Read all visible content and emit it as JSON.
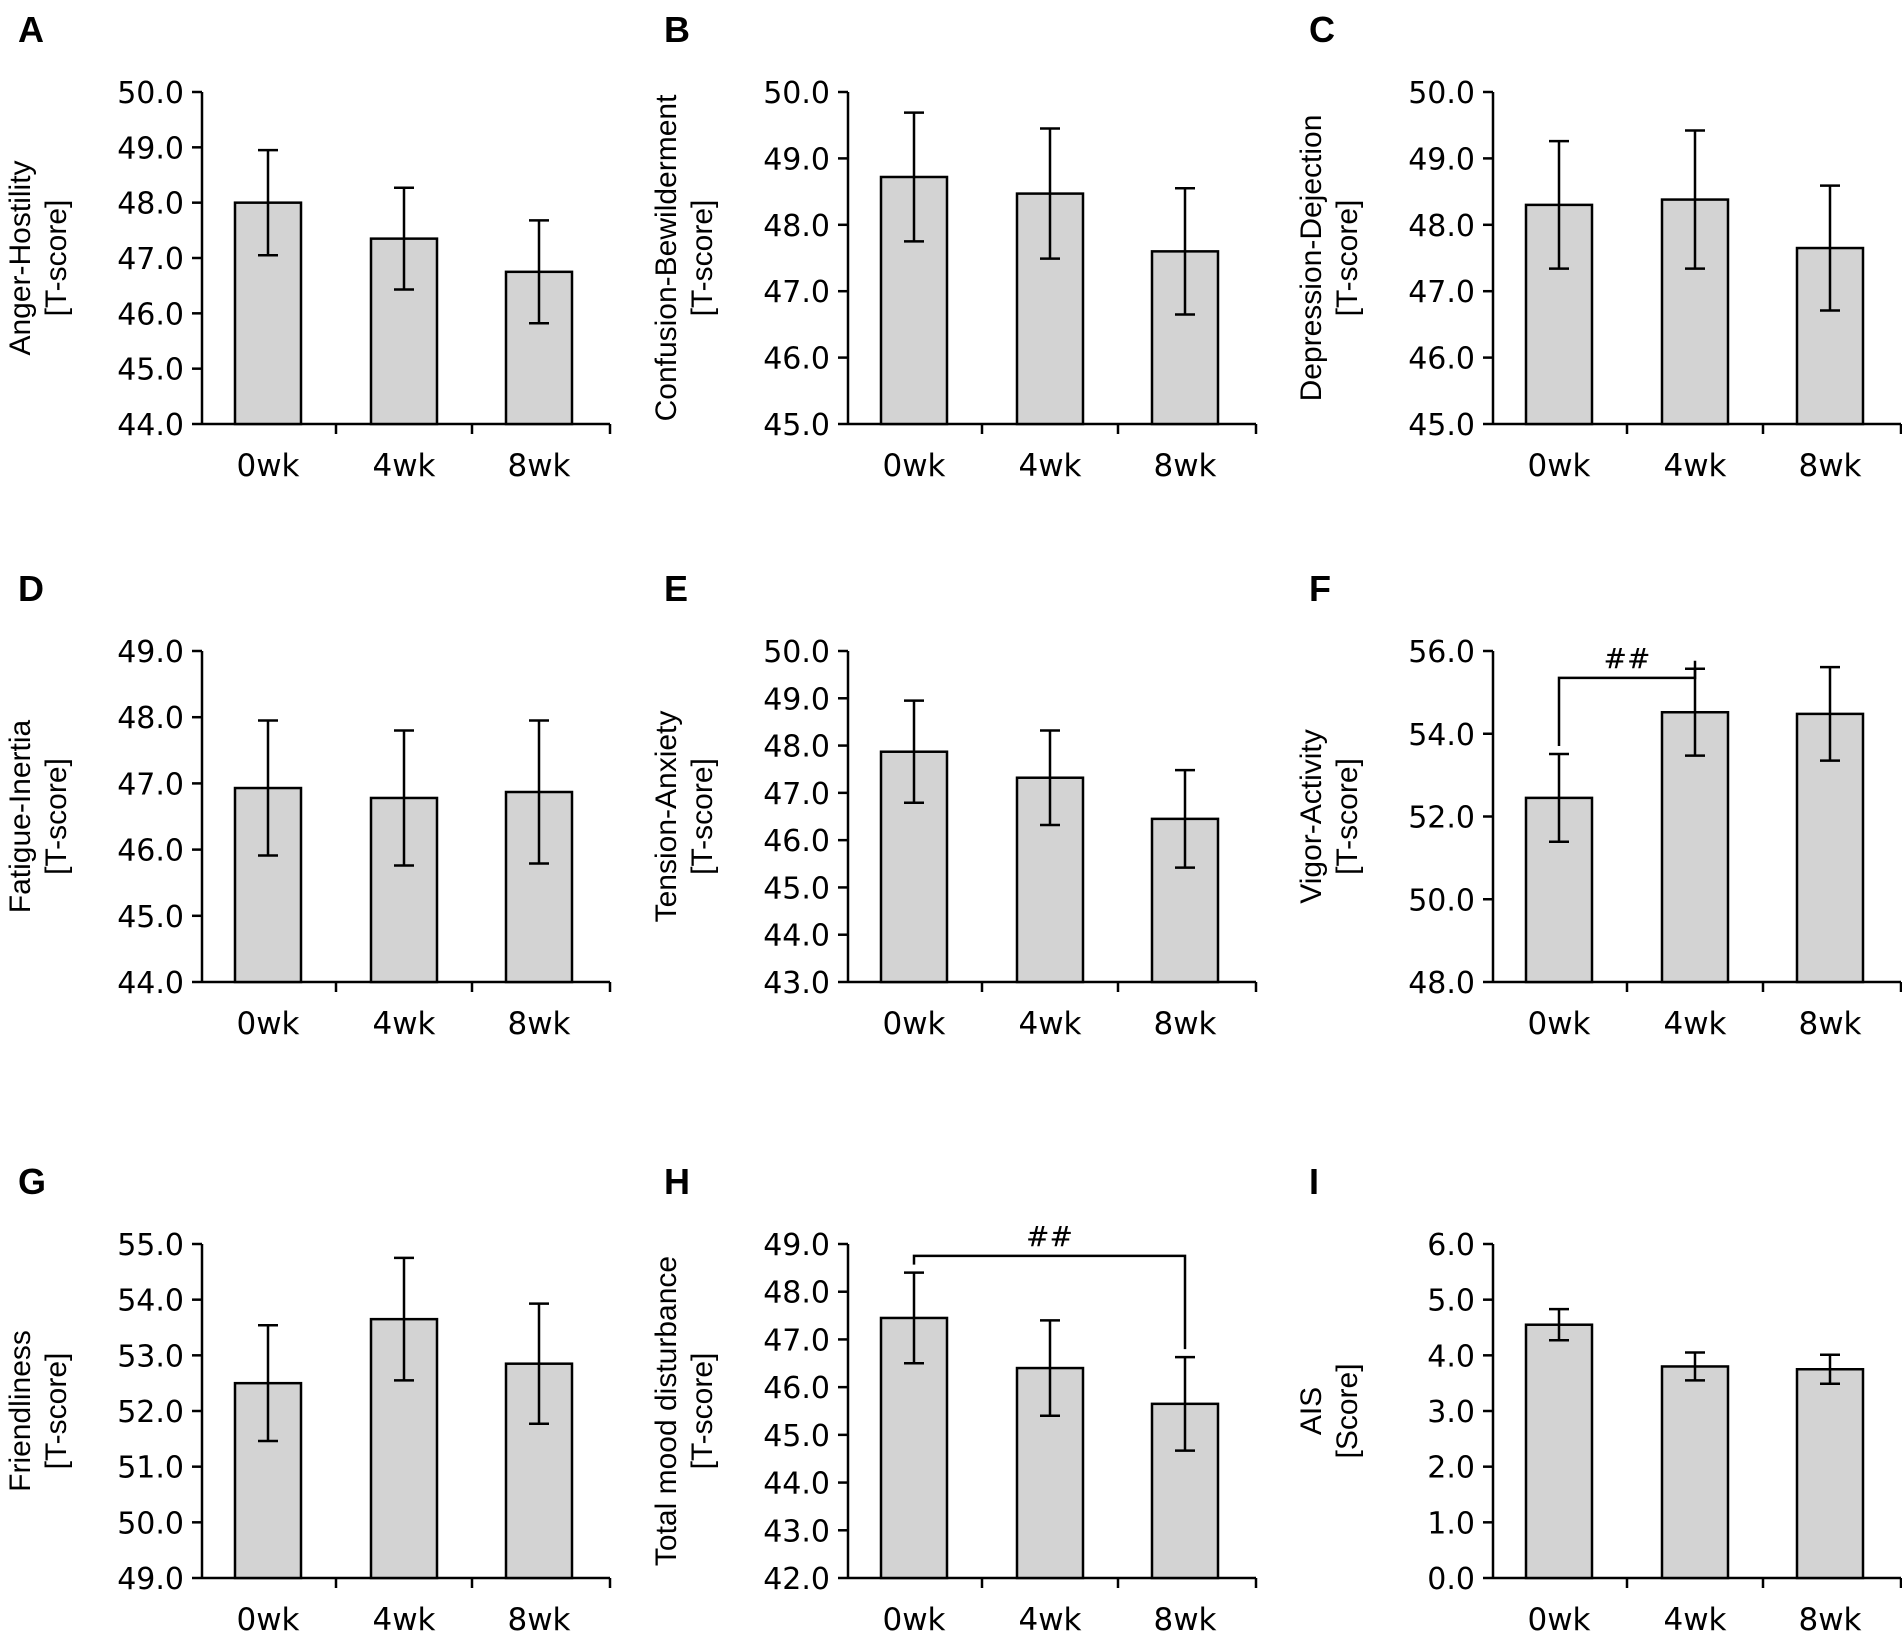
{
  "chart_data": [
    {
      "panel": "A",
      "type": "bar",
      "categories": [
        "0wk",
        "4wk",
        "8wk"
      ],
      "values": [
        48.0,
        47.35,
        46.75
      ],
      "errors": [
        0.95,
        0.92,
        0.93
      ],
      "ylabel_lines": [
        "Anger-Hostility",
        "[T-score]"
      ],
      "ylim": [
        44.0,
        50.0
      ],
      "yticks": [
        "50.0",
        "49.0",
        "48.0",
        "47.0",
        "46.0",
        "45.0",
        "44.0"
      ],
      "significance": null
    },
    {
      "panel": "B",
      "type": "bar",
      "categories": [
        "0wk",
        "4wk",
        "8wk"
      ],
      "values": [
        48.72,
        48.47,
        47.6
      ],
      "errors": [
        0.97,
        0.98,
        0.95
      ],
      "ylabel_lines": [
        "Confusion-Bewilderment",
        "[T-score]"
      ],
      "ylim": [
        45.0,
        50.0
      ],
      "yticks": [
        "50.0",
        "49.0",
        "48.0",
        "47.0",
        "46.0",
        "45.0"
      ],
      "significance": null
    },
    {
      "panel": "C",
      "type": "bar",
      "categories": [
        "0wk",
        "4wk",
        "8wk"
      ],
      "values": [
        48.3,
        48.38,
        47.65
      ],
      "errors": [
        0.96,
        1.04,
        0.94
      ],
      "ylabel_lines": [
        "Depression-Dejection",
        "[T-score]"
      ],
      "ylim": [
        45.0,
        50.0
      ],
      "yticks": [
        "50.0",
        "49.0",
        "48.0",
        "47.0",
        "46.0",
        "45.0"
      ],
      "significance": null
    },
    {
      "panel": "D",
      "type": "bar",
      "categories": [
        "0wk",
        "4wk",
        "8wk"
      ],
      "values": [
        46.93,
        46.78,
        46.87
      ],
      "errors": [
        1.02,
        1.02,
        1.08
      ],
      "ylabel_lines": [
        "Fatigue-Inertia",
        "[T-score]"
      ],
      "ylim": [
        44.0,
        49.0
      ],
      "yticks": [
        "49.0",
        "48.0",
        "47.0",
        "46.0",
        "45.0",
        "44.0"
      ],
      "significance": null
    },
    {
      "panel": "E",
      "type": "bar",
      "categories": [
        "0wk",
        "4wk",
        "8wk"
      ],
      "values": [
        47.87,
        47.32,
        46.45
      ],
      "errors": [
        1.08,
        1.0,
        1.03
      ],
      "ylabel_lines": [
        "Tension-Anxiety",
        "[T-score]"
      ],
      "ylim": [
        43.0,
        50.0
      ],
      "yticks": [
        "50.0",
        "49.0",
        "48.0",
        "47.0",
        "46.0",
        "45.0",
        "44.0",
        "43.0"
      ],
      "significance": null
    },
    {
      "panel": "F",
      "type": "bar",
      "categories": [
        "0wk",
        "4wk",
        "8wk"
      ],
      "values": [
        52.45,
        54.52,
        54.48
      ],
      "errors": [
        1.06,
        1.05,
        1.13
      ],
      "ylabel_lines": [
        "Vigor-Activity",
        "[T-score]"
      ],
      "ylim": [
        48.0,
        56.0
      ],
      "yticks": [
        "56.0",
        "54.0",
        "52.0",
        "50.0",
        "48.0"
      ],
      "significance": {
        "from": 0,
        "to": 1,
        "label": "##",
        "level": 55.35
      }
    },
    {
      "panel": "G",
      "type": "bar",
      "categories": [
        "0wk",
        "4wk",
        "8wk"
      ],
      "values": [
        52.5,
        53.65,
        52.85
      ],
      "errors": [
        1.04,
        1.1,
        1.08
      ],
      "ylabel_lines": [
        "Friendliness",
        "[T-score]"
      ],
      "ylim": [
        49.0,
        55.0
      ],
      "yticks": [
        "55.0",
        "54.0",
        "53.0",
        "52.0",
        "51.0",
        "50.0",
        "49.0"
      ],
      "significance": null
    },
    {
      "panel": "H",
      "type": "bar",
      "categories": [
        "0wk",
        "4wk",
        "8wk"
      ],
      "values": [
        47.45,
        46.4,
        45.65
      ],
      "errors": [
        0.95,
        1.0,
        0.98
      ],
      "ylabel_lines": [
        "Total mood disturbance",
        "[T-score]"
      ],
      "ylim": [
        42.0,
        49.0
      ],
      "yticks": [
        "49.0",
        "48.0",
        "47.0",
        "46.0",
        "45.0",
        "44.0",
        "43.0",
        "42.0"
      ],
      "significance": {
        "from": 0,
        "to": 2,
        "label": "##",
        "level": 48.75
      }
    },
    {
      "panel": "I",
      "type": "bar",
      "categories": [
        "0wk",
        "4wk",
        "8wk"
      ],
      "values": [
        4.55,
        3.8,
        3.75
      ],
      "errors": [
        0.28,
        0.25,
        0.26
      ],
      "ylabel_lines": [
        "AIS",
        "[Score]"
      ],
      "ylim": [
        0.0,
        6.0
      ],
      "yticks": [
        "6.0",
        "5.0",
        "4.0",
        "3.0",
        "2.0",
        "1.0",
        "0.0"
      ],
      "significance": null
    }
  ]
}
